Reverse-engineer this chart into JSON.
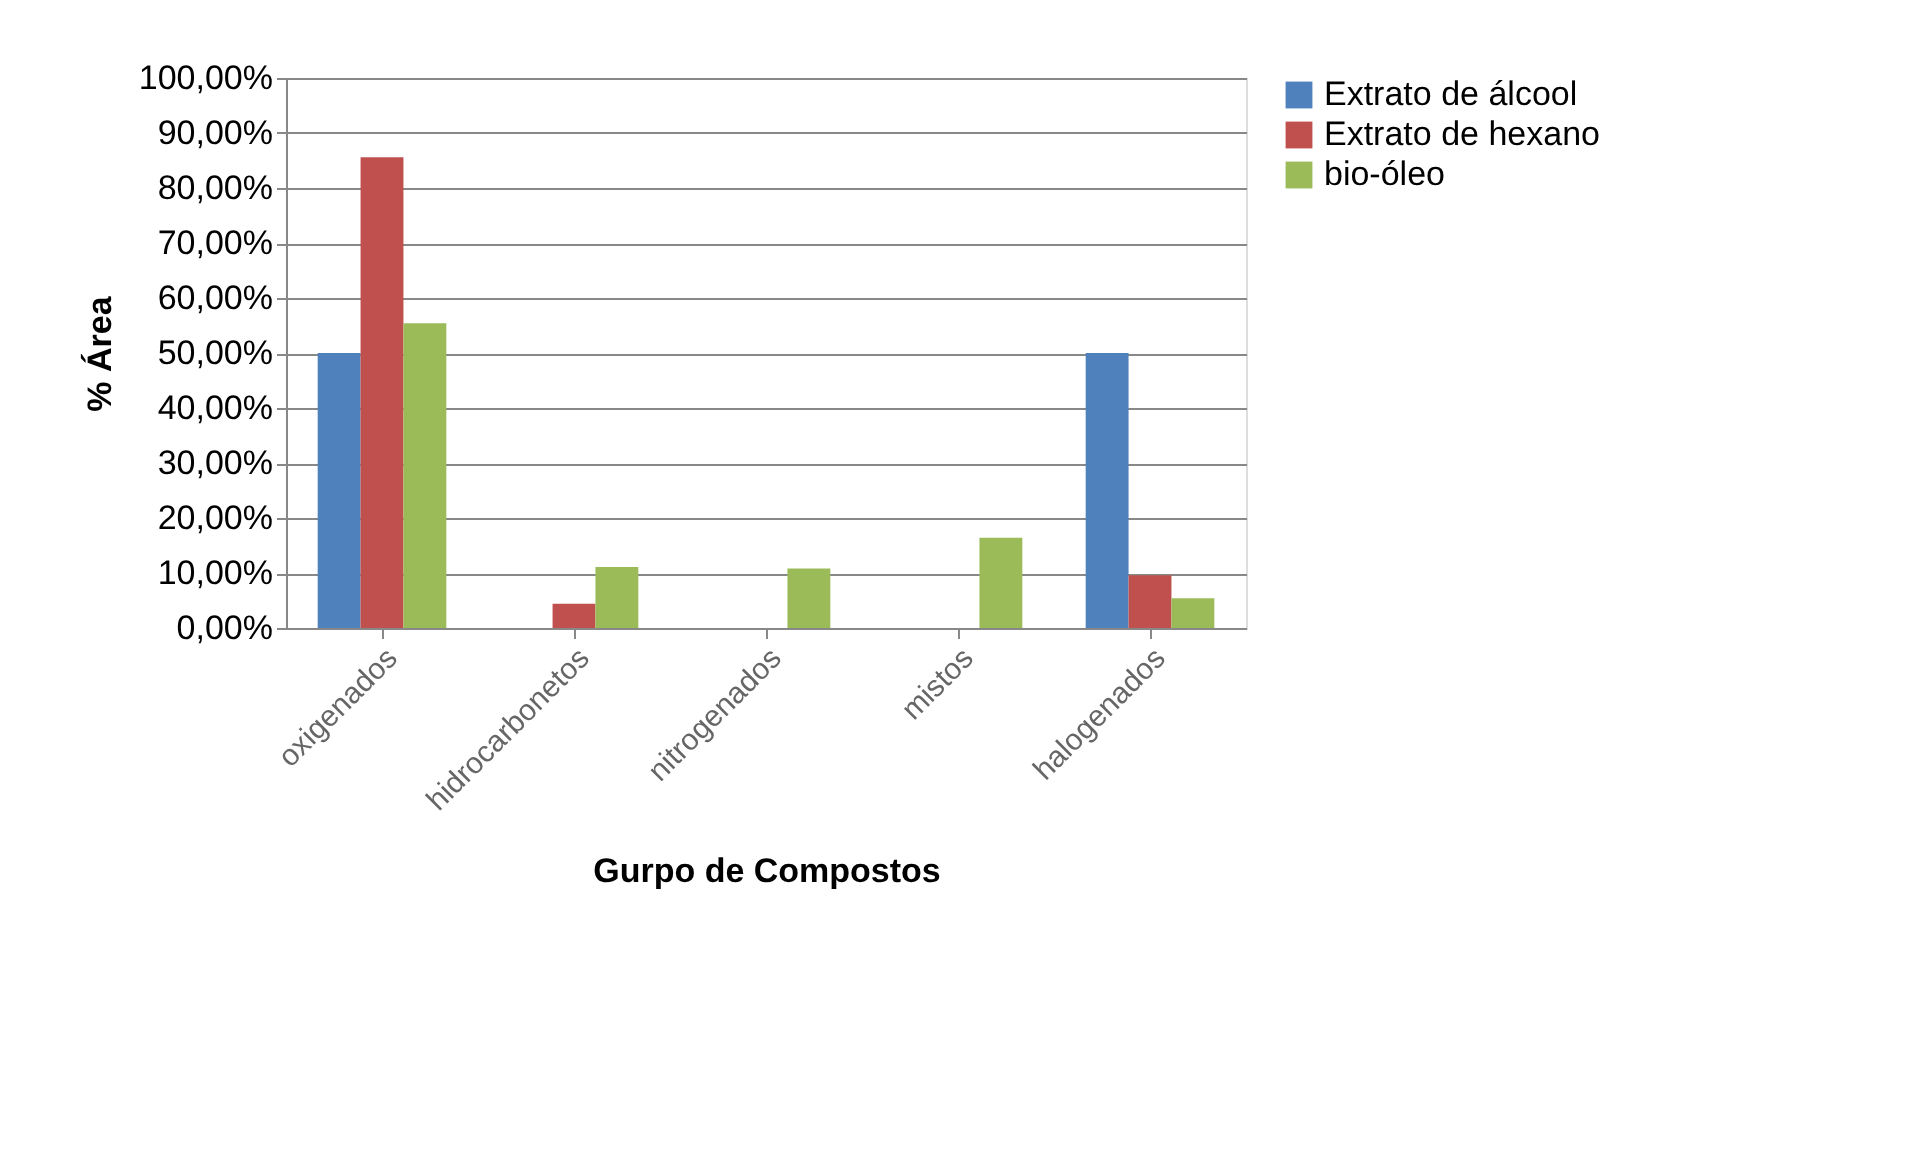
{
  "chart_data": {
    "type": "bar",
    "xlabel": "Gurpo de Compostos",
    "ylabel": "% Área",
    "categories": [
      "oxigenados",
      "hidrocarbonetos",
      "nitrogenados",
      "mistos",
      "halogenados"
    ],
    "series": [
      {
        "name": "Extrato de álcool",
        "color": "#4f81bd",
        "values": [
          50.0,
          null,
          null,
          null,
          50.0
        ]
      },
      {
        "name": "Extrato de hexano",
        "color": "#c0504d",
        "values": [
          85.6,
          4.4,
          null,
          null,
          9.6
        ]
      },
      {
        "name": "bio-óleo",
        "color": "#9bbb59",
        "values": [
          55.4,
          11.1,
          10.8,
          16.4,
          5.4
        ]
      }
    ],
    "ylim": [
      0,
      100
    ],
    "yticks": [
      {
        "value": 0,
        "label": "0,00%"
      },
      {
        "value": 10,
        "label": "10,00%"
      },
      {
        "value": 20,
        "label": "20,00%"
      },
      {
        "value": 30,
        "label": "30,00%"
      },
      {
        "value": 40,
        "label": "40,00%"
      },
      {
        "value": 50,
        "label": "50,00%"
      },
      {
        "value": 60,
        "label": "60,00%"
      },
      {
        "value": 70,
        "label": "70,00%"
      },
      {
        "value": 80,
        "label": "80,00%"
      },
      {
        "value": 90,
        "label": "90,00%"
      },
      {
        "value": 100,
        "label": "100,00%"
      }
    ],
    "grid": "y",
    "legend": "right"
  }
}
